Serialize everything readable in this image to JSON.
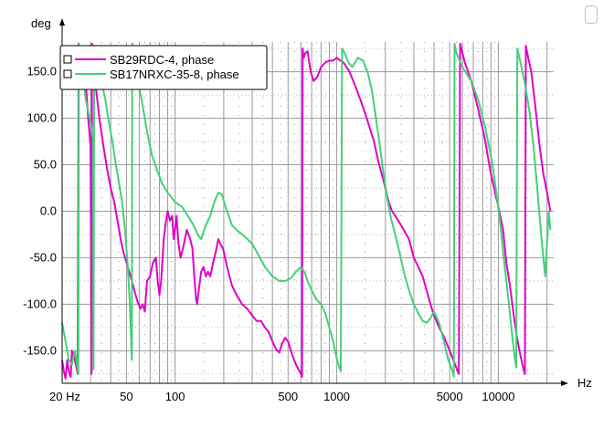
{
  "chart_data": {
    "type": "line",
    "xlabel": "Hz",
    "ylabel": "deg",
    "xscale": "log",
    "xlim": [
      20,
      22000
    ],
    "ylim": [
      -185,
      182
    ],
    "grid": true,
    "legend_placement": "top-left",
    "y_ticks": [
      150,
      100,
      50,
      0,
      -50,
      -100,
      -150
    ],
    "y_tick_labels": [
      "150.0",
      "100.0",
      "50.0",
      "0.0",
      "-50.0",
      "-100.0",
      "-150.0"
    ],
    "x_tick_labels": [
      {
        "value": 20,
        "label": "20 Hz"
      },
      {
        "value": 50,
        "label": "50"
      },
      {
        "value": 100,
        "label": "100"
      },
      {
        "value": 500,
        "label": "500"
      },
      {
        "value": 1000,
        "label": "1000"
      },
      {
        "value": 5000,
        "label": "5000"
      },
      {
        "value": 10000,
        "label": "10000"
      }
    ],
    "series": [
      {
        "name": "SB29RDC-4, phase",
        "color": "#e000c8",
        "points": [
          [
            20,
            -160
          ],
          [
            20.5,
            -172
          ],
          [
            21,
            -180
          ],
          [
            21.5,
            -160
          ],
          [
            22,
            -172
          ],
          [
            22.6,
            -178
          ],
          [
            23,
            -150
          ],
          [
            24,
            -160
          ],
          [
            25,
            -175
          ],
          [
            25.3,
            180
          ],
          [
            26,
            160
          ],
          [
            27,
            150
          ],
          [
            28,
            140
          ],
          [
            29,
            100
          ],
          [
            30,
            70
          ],
          [
            30.4,
            -175
          ],
          [
            30.6,
            180
          ],
          [
            32,
            140
          ],
          [
            34,
            100
          ],
          [
            36,
            70
          ],
          [
            38,
            45
          ],
          [
            40,
            25
          ],
          [
            42,
            10
          ],
          [
            44,
            -10
          ],
          [
            46,
            -30
          ],
          [
            48,
            -45
          ],
          [
            50,
            -55
          ],
          [
            52,
            -65
          ],
          [
            55,
            -80
          ],
          [
            58,
            -95
          ],
          [
            61,
            -105
          ],
          [
            63,
            -100
          ],
          [
            65,
            -108
          ],
          [
            67,
            -75
          ],
          [
            70,
            -70
          ],
          [
            73,
            -55
          ],
          [
            76,
            -50
          ],
          [
            78,
            -75
          ],
          [
            80,
            -90
          ],
          [
            82,
            -75
          ],
          [
            85,
            -30
          ],
          [
            88,
            -10
          ],
          [
            90,
            0
          ],
          [
            93,
            -10
          ],
          [
            96,
            -5
          ],
          [
            98,
            -30
          ],
          [
            100,
            -20
          ],
          [
            102,
            -5
          ],
          [
            105,
            -35
          ],
          [
            108,
            -50
          ],
          [
            112,
            -40
          ],
          [
            118,
            -20
          ],
          [
            124,
            -30
          ],
          [
            128,
            -40
          ],
          [
            132,
            -75
          ],
          [
            135,
            -95
          ],
          [
            137,
            -100
          ],
          [
            140,
            -85
          ],
          [
            145,
            -65
          ],
          [
            150,
            -60
          ],
          [
            155,
            -70
          ],
          [
            160,
            -65
          ],
          [
            165,
            -70
          ],
          [
            172,
            -55
          ],
          [
            178,
            -45
          ],
          [
            185,
            -30
          ],
          [
            190,
            -35
          ],
          [
            198,
            -40
          ],
          [
            210,
            -60
          ],
          [
            225,
            -80
          ],
          [
            240,
            -90
          ],
          [
            260,
            -100
          ],
          [
            280,
            -105
          ],
          [
            300,
            -112
          ],
          [
            320,
            -118
          ],
          [
            340,
            -118
          ],
          [
            360,
            -125
          ],
          [
            380,
            -130
          ],
          [
            400,
            -140
          ],
          [
            420,
            -148
          ],
          [
            440,
            -152
          ],
          [
            460,
            -142
          ],
          [
            480,
            -136
          ],
          [
            500,
            -140
          ],
          [
            520,
            -150
          ],
          [
            540,
            -158
          ],
          [
            560,
            -165
          ],
          [
            580,
            -170
          ],
          [
            600,
            -175
          ],
          [
            610,
            -178
          ],
          [
            615,
            175
          ],
          [
            625,
            165
          ],
          [
            640,
            170
          ],
          [
            660,
            172
          ],
          [
            690,
            150
          ],
          [
            720,
            140
          ],
          [
            760,
            145
          ],
          [
            800,
            155
          ],
          [
            850,
            160
          ],
          [
            900,
            162
          ],
          [
            950,
            162
          ],
          [
            1000,
            165
          ],
          [
            1050,
            162
          ],
          [
            1100,
            160
          ],
          [
            1200,
            150
          ],
          [
            1300,
            135
          ],
          [
            1400,
            120
          ],
          [
            1500,
            105
          ],
          [
            1600,
            90
          ],
          [
            1700,
            75
          ],
          [
            1800,
            55
          ],
          [
            1900,
            40
          ],
          [
            2000,
            25
          ],
          [
            2100,
            10
          ],
          [
            2200,
            0
          ],
          [
            2300,
            -5
          ],
          [
            2400,
            -10
          ],
          [
            2500,
            -15
          ],
          [
            2600,
            -20
          ],
          [
            2800,
            -30
          ],
          [
            3000,
            -50
          ],
          [
            3200,
            -60
          ],
          [
            3400,
            -70
          ],
          [
            3600,
            -85
          ],
          [
            3800,
            -100
          ],
          [
            4000,
            -112
          ],
          [
            4300,
            -125
          ],
          [
            4600,
            -135
          ],
          [
            5000,
            -150
          ],
          [
            5400,
            -165
          ],
          [
            5700,
            -175
          ],
          [
            5800,
            180
          ],
          [
            6200,
            160
          ],
          [
            6800,
            140
          ],
          [
            7500,
            110
          ],
          [
            8200,
            80
          ],
          [
            9000,
            40
          ],
          [
            10000,
            5
          ],
          [
            10700,
            -20
          ],
          [
            11200,
            -55
          ],
          [
            11800,
            -80
          ],
          [
            12400,
            -110
          ],
          [
            13000,
            -135
          ],
          [
            13700,
            -155
          ],
          [
            14300,
            -170
          ],
          [
            14600,
            -175
          ],
          [
            14800,
            178
          ],
          [
            15300,
            165
          ],
          [
            16000,
            150
          ],
          [
            17000,
            110
          ],
          [
            18000,
            70
          ],
          [
            19000,
            40
          ],
          [
            20000,
            20
          ],
          [
            21000,
            0
          ]
        ]
      },
      {
        "name": "SB17NRXC-35-8, phase",
        "color": "#44d076",
        "points": [
          [
            20,
            -120
          ],
          [
            21,
            -140
          ],
          [
            22,
            -160
          ],
          [
            23,
            -165
          ],
          [
            24,
            -150
          ],
          [
            25.2,
            -175
          ],
          [
            25.4,
            180
          ],
          [
            26,
            170
          ],
          [
            28,
            120
          ],
          [
            30,
            95
          ],
          [
            31,
            80
          ],
          [
            31.3,
            -170
          ],
          [
            31.6,
            178
          ],
          [
            33,
            160
          ],
          [
            35,
            140
          ],
          [
            37,
            120
          ],
          [
            39,
            95
          ],
          [
            41,
            75
          ],
          [
            43,
            50
          ],
          [
            45,
            30
          ],
          [
            47,
            10
          ],
          [
            49,
            -20
          ],
          [
            51,
            -60
          ],
          [
            52.5,
            -100
          ],
          [
            53.5,
            -140
          ],
          [
            54,
            -160
          ],
          [
            54.3,
            180
          ],
          [
            56,
            160
          ],
          [
            59,
            140
          ],
          [
            62,
            120
          ],
          [
            65,
            100
          ],
          [
            68,
            80
          ],
          [
            72,
            60
          ],
          [
            77,
            45
          ],
          [
            83,
            30
          ],
          [
            90,
            20
          ],
          [
            100,
            10
          ],
          [
            110,
            5
          ],
          [
            120,
            -5
          ],
          [
            130,
            -15
          ],
          [
            138,
            -25
          ],
          [
            145,
            -30
          ],
          [
            155,
            -15
          ],
          [
            165,
            -5
          ],
          [
            175,
            10
          ],
          [
            185,
            20
          ],
          [
            195,
            18
          ],
          [
            205,
            5
          ],
          [
            215,
            -5
          ],
          [
            225,
            -15
          ],
          [
            240,
            -20
          ],
          [
            260,
            -25
          ],
          [
            280,
            -30
          ],
          [
            300,
            -35
          ],
          [
            330,
            -48
          ],
          [
            360,
            -60
          ],
          [
            400,
            -70
          ],
          [
            440,
            -75
          ],
          [
            480,
            -75
          ],
          [
            520,
            -72
          ],
          [
            560,
            -65
          ],
          [
            600,
            -60
          ],
          [
            630,
            -65
          ],
          [
            660,
            -75
          ],
          [
            700,
            -85
          ],
          [
            750,
            -95
          ],
          [
            800,
            -100
          ],
          [
            850,
            -110
          ],
          [
            900,
            -125
          ],
          [
            950,
            -140
          ],
          [
            1000,
            -158
          ],
          [
            1040,
            -168
          ],
          [
            1060,
            -172
          ],
          [
            1080,
            175
          ],
          [
            1120,
            170
          ],
          [
            1180,
            160
          ],
          [
            1250,
            155
          ],
          [
            1350,
            165
          ],
          [
            1450,
            162
          ],
          [
            1550,
            150
          ],
          [
            1650,
            130
          ],
          [
            1750,
            100
          ],
          [
            1850,
            70
          ],
          [
            1950,
            40
          ],
          [
            2050,
            15
          ],
          [
            2150,
            -5
          ],
          [
            2300,
            -25
          ],
          [
            2450,
            -45
          ],
          [
            2600,
            -65
          ],
          [
            2800,
            -85
          ],
          [
            3000,
            -100
          ],
          [
            3200,
            -110
          ],
          [
            3400,
            -118
          ],
          [
            3600,
            -120
          ],
          [
            3800,
            -115
          ],
          [
            4000,
            -108
          ],
          [
            4300,
            -120
          ],
          [
            4600,
            -140
          ],
          [
            4900,
            -160
          ],
          [
            5100,
            -168
          ],
          [
            5200,
            -172
          ],
          [
            5300,
            -178
          ],
          [
            5360,
            180
          ],
          [
            5500,
            170
          ],
          [
            6000,
            155
          ],
          [
            6800,
            140
          ],
          [
            7500,
            120
          ],
          [
            8300,
            90
          ],
          [
            9100,
            55
          ],
          [
            9800,
            15
          ],
          [
            10300,
            -15
          ],
          [
            10800,
            -50
          ],
          [
            11300,
            -80
          ],
          [
            11800,
            -110
          ],
          [
            12300,
            -140
          ],
          [
            12700,
            -160
          ],
          [
            12900,
            -168
          ],
          [
            13100,
            175
          ],
          [
            13700,
            160
          ],
          [
            14500,
            140
          ],
          [
            15500,
            110
          ],
          [
            16500,
            70
          ],
          [
            17500,
            20
          ],
          [
            18500,
            -30
          ],
          [
            19500,
            -70
          ],
          [
            20500,
            0
          ],
          [
            21000,
            -20
          ]
        ]
      }
    ]
  }
}
